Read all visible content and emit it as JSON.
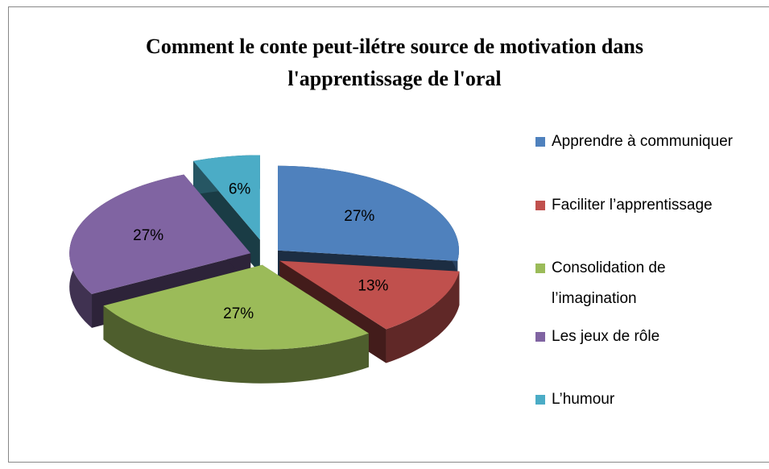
{
  "chart_data": {
    "type": "pie",
    "title": "Comment le conte peut-ilétre source de motivation dans l'apprentissage de l'oral",
    "categories": [
      "Apprendre à communiquer",
      "Faciliter l’apprentissage",
      "Consolidation de l’imagination",
      "Les jeux de rôle",
      "L’humour"
    ],
    "values": [
      27,
      13,
      27,
      27,
      6
    ],
    "value_labels": [
      "27%",
      "13%",
      "27%",
      "27%",
      "6%"
    ],
    "colors": [
      "#4f81bd",
      "#c0504d",
      "#9bbb59",
      "#8064a2",
      "#4bacc6"
    ],
    "legend": "right"
  }
}
